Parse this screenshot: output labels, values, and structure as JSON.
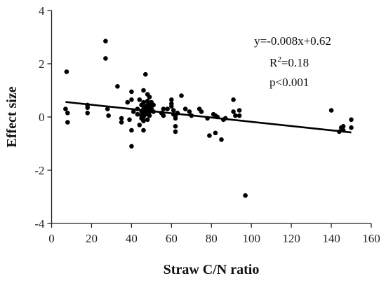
{
  "chart_data": {
    "type": "scatter",
    "xlabel": "Straw C/N ratio",
    "ylabel": "Effect size",
    "xlim": [
      0,
      160
    ],
    "ylim": [
      -4,
      4
    ],
    "x_ticks": [
      0,
      20,
      40,
      60,
      80,
      100,
      120,
      140,
      160
    ],
    "y_ticks": [
      -4,
      -2,
      0,
      2,
      4
    ],
    "grid": false,
    "legend": "none",
    "series": [
      {
        "color": "#000000",
        "points": [
          [
            7,
            0.3
          ],
          [
            7.5,
            1.7
          ],
          [
            8,
            0.15
          ],
          [
            8,
            -0.2
          ],
          [
            18,
            0.45
          ],
          [
            18,
            0.35
          ],
          [
            18,
            0.15
          ],
          [
            27,
            2.85
          ],
          [
            27,
            2.2
          ],
          [
            28,
            0.3
          ],
          [
            28.5,
            0.05
          ],
          [
            33,
            1.15
          ],
          [
            35,
            -0.05
          ],
          [
            35,
            -0.2
          ],
          [
            38,
            0.55
          ],
          [
            39,
            -0.1
          ],
          [
            40,
            0.95
          ],
          [
            40,
            0.65
          ],
          [
            40,
            -0.5
          ],
          [
            40,
            -1.1
          ],
          [
            41,
            0.2
          ],
          [
            43,
            0.3
          ],
          [
            43,
            0.1
          ],
          [
            44,
            -0.3
          ],
          [
            44,
            0.65
          ],
          [
            45,
            0.45
          ],
          [
            45,
            0.2
          ],
          [
            45,
            0.05
          ],
          [
            45,
            -0.05
          ],
          [
            46,
            1.0
          ],
          [
            46,
            0.55
          ],
          [
            46,
            0.3
          ],
          [
            46,
            0.15
          ],
          [
            46,
            0.0
          ],
          [
            46,
            -0.15
          ],
          [
            46,
            -0.5
          ],
          [
            47,
            1.6
          ],
          [
            47,
            0.4
          ],
          [
            47,
            0.25
          ],
          [
            47,
            0.1
          ],
          [
            48,
            0.85
          ],
          [
            48,
            0.6
          ],
          [
            48,
            0.45
          ],
          [
            48,
            0.3
          ],
          [
            48,
            0.2
          ],
          [
            48,
            -0.1
          ],
          [
            49,
            0.75
          ],
          [
            49,
            0.5
          ],
          [
            49,
            0.35
          ],
          [
            49,
            0.2
          ],
          [
            49,
            0.05
          ],
          [
            50,
            0.55
          ],
          [
            50,
            0.4
          ],
          [
            50,
            0.3
          ],
          [
            51,
            0.2
          ],
          [
            51,
            0.45
          ],
          [
            55,
            0.15
          ],
          [
            56,
            0.3
          ],
          [
            56,
            0.05
          ],
          [
            58,
            0.3
          ],
          [
            60,
            0.65
          ],
          [
            60,
            0.5
          ],
          [
            60,
            0.4
          ],
          [
            61,
            0.25
          ],
          [
            61,
            0.1
          ],
          [
            62,
            0.05
          ],
          [
            62,
            -0.05
          ],
          [
            62,
            -0.35
          ],
          [
            62,
            -0.55
          ],
          [
            63,
            0.15
          ],
          [
            65,
            0.8
          ],
          [
            67,
            0.3
          ],
          [
            69,
            0.2
          ],
          [
            70,
            0.05
          ],
          [
            74,
            0.3
          ],
          [
            75,
            0.2
          ],
          [
            78,
            -0.05
          ],
          [
            79,
            -0.7
          ],
          [
            81,
            0.1
          ],
          [
            82,
            0.05
          ],
          [
            82,
            -0.6
          ],
          [
            83,
            0.0
          ],
          [
            85,
            -0.85
          ],
          [
            86,
            -0.1
          ],
          [
            87,
            -0.05
          ],
          [
            91,
            0.65
          ],
          [
            91,
            0.2
          ],
          [
            92,
            0.05
          ],
          [
            94,
            0.25
          ],
          [
            94,
            0.05
          ],
          [
            97,
            -2.95
          ],
          [
            140,
            0.25
          ],
          [
            144,
            -0.55
          ],
          [
            145,
            -0.4
          ],
          [
            146,
            -0.5
          ],
          [
            146,
            -0.35
          ],
          [
            150,
            -0.1
          ],
          [
            150,
            -0.4
          ]
        ]
      }
    ],
    "trendline": {
      "slope": -0.008,
      "intercept": 0.62,
      "x_range": [
        7,
        150
      ]
    },
    "annotations": {
      "equation": "y=-0.008x+0.62",
      "r2_prefix": "R",
      "r2_superscript": "2",
      "r2_suffix": "=0.18",
      "p_value": "p<0.001"
    }
  }
}
